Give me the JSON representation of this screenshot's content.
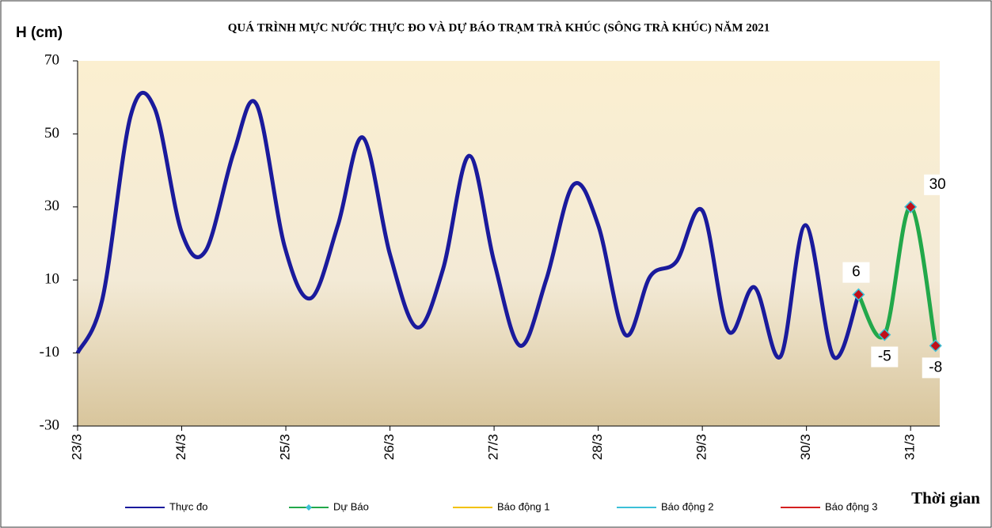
{
  "chart_data": {
    "type": "line",
    "title": "QUÁ TRÌNH MỰC NƯỚC THỰC ĐO VÀ DỰ BÁO TRẠM TRÀ KHÚC (SÔNG TRÀ KHÚC) NĂM 2021",
    "y_label": "H (cm)",
    "x_label": "Thời gian",
    "xlim": [
      0,
      8.28
    ],
    "xticks": [
      {
        "value": 0,
        "label": "23/3"
      },
      {
        "value": 1,
        "label": "24/3"
      },
      {
        "value": 2,
        "label": "25/3"
      },
      {
        "value": 3,
        "label": "26/3"
      },
      {
        "value": 4,
        "label": "27/3"
      },
      {
        "value": 5,
        "label": "28/3"
      },
      {
        "value": 6,
        "label": "29/3"
      },
      {
        "value": 7,
        "label": "30/3"
      },
      {
        "value": 8,
        "label": "31/3"
      }
    ],
    "ylim": [
      -30,
      70
    ],
    "yticks": [
      -30,
      -10,
      10,
      30,
      50,
      70
    ],
    "series": [
      {
        "name": "Thực đo",
        "color": "#1a1a9c",
        "x": [
          0,
          0.24,
          0.51,
          0.74,
          1.0,
          1.23,
          1.5,
          1.72,
          1.99,
          2.24,
          2.5,
          2.74,
          3.0,
          3.26,
          3.51,
          3.76,
          4.0,
          4.25,
          4.5,
          4.76,
          5.0,
          5.26,
          5.5,
          5.75,
          6.0,
          6.25,
          6.5,
          6.75,
          6.99,
          7.26,
          7.5
        ],
        "values": [
          -10,
          5,
          55,
          57,
          23,
          18,
          45,
          58,
          19,
          5,
          25,
          49,
          17,
          -3,
          13,
          44,
          15,
          -8,
          10,
          36,
          25,
          -5,
          11,
          15,
          29,
          -4,
          8,
          -11,
          25,
          -11,
          6
        ]
      },
      {
        "name": "Dự Báo",
        "color": "#22a84a",
        "x": [
          7.5,
          7.75,
          8.0,
          8.24
        ],
        "values": [
          6,
          -5,
          30,
          -8
        ]
      }
    ],
    "alarm_levels": [
      {
        "name": "Báo động 1",
        "color": "#f2c200"
      },
      {
        "name": "Báo động 2",
        "color": "#3cc0d8"
      },
      {
        "name": "Báo động 3",
        "color": "#d42020"
      }
    ]
  }
}
